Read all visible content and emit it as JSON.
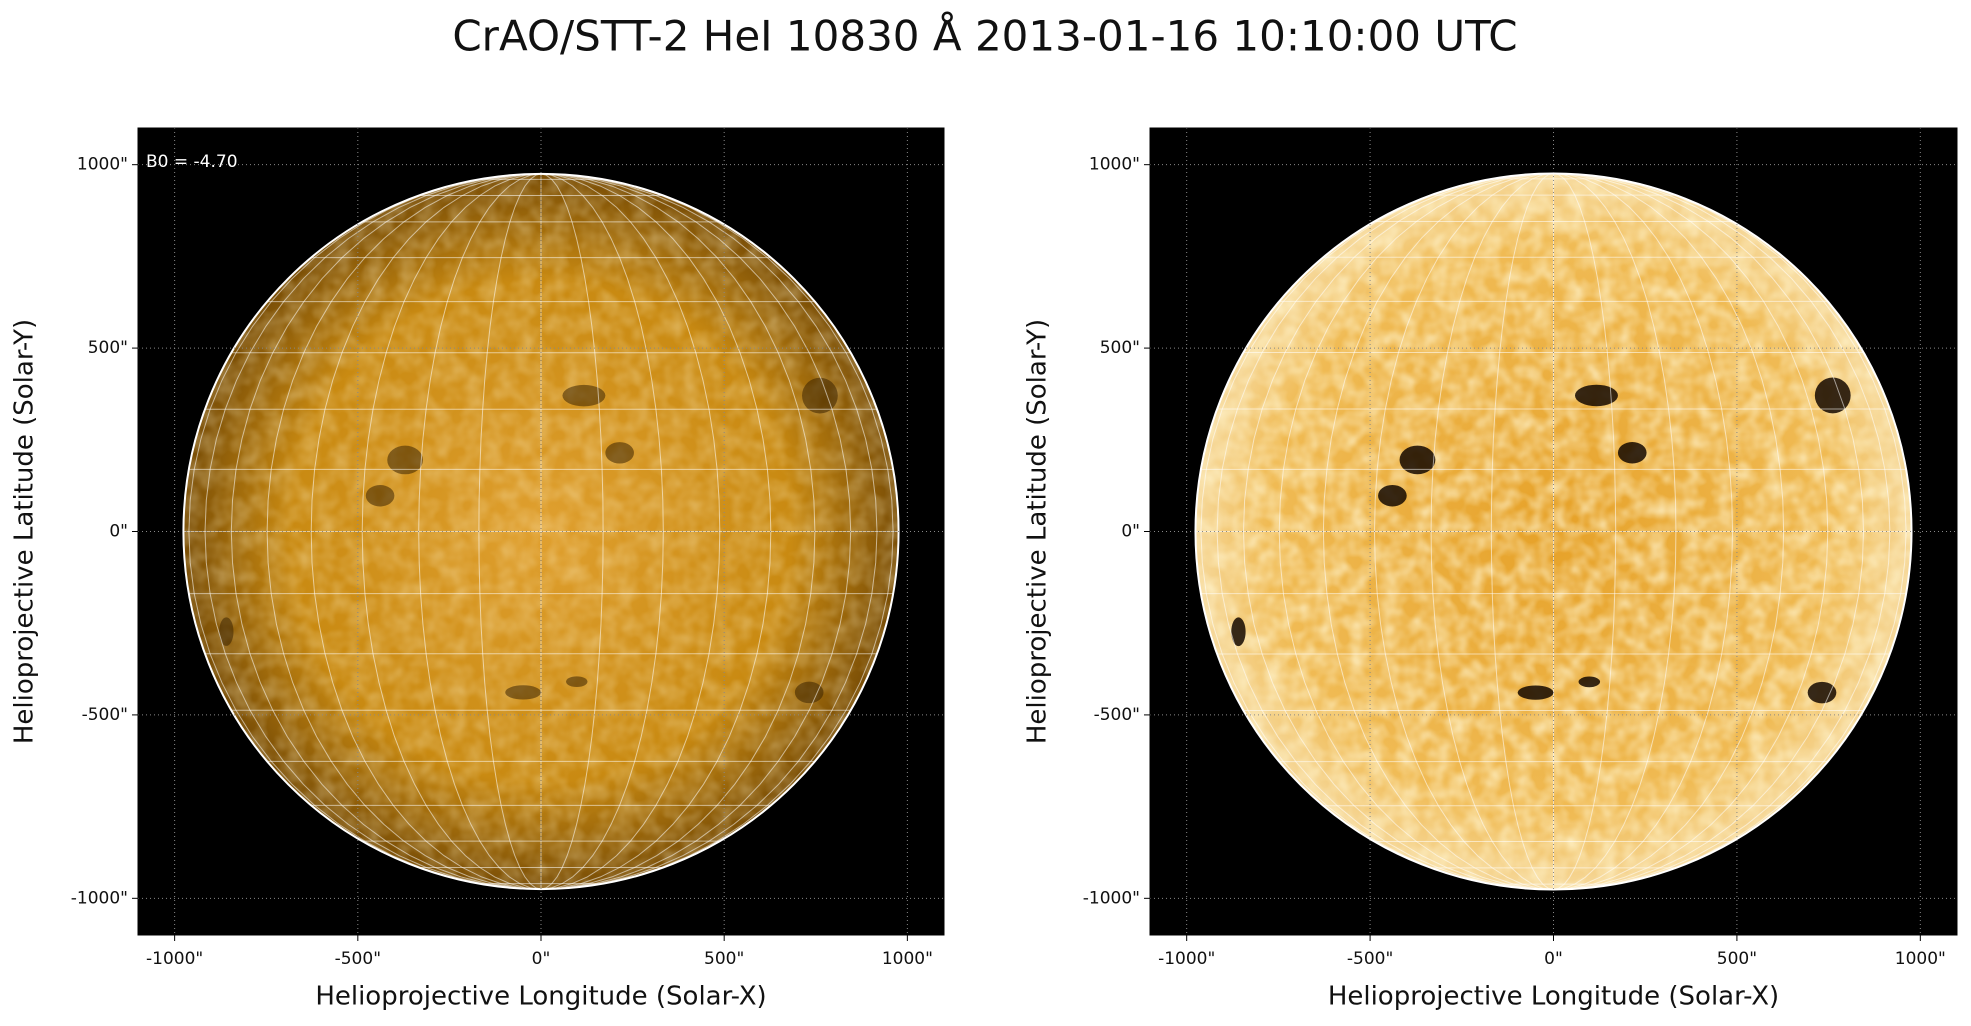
{
  "title": "CrAO/STT-2 HeI 10830 Å 2013-01-16 10:10:00 UTC",
  "chart_data": [
    {
      "type": "image",
      "xlabel": "Helioprojective Longitude (Solar-X)",
      "ylabel": "Helioprojective Latitude (Solar-Y)",
      "xlim": [
        -1100,
        1100
      ],
      "ylim": [
        -1100,
        1100
      ],
      "xticks": [
        {
          "value": -1000,
          "label": "-1000\""
        },
        {
          "value": -500,
          "label": "-500\""
        },
        {
          "value": 0,
          "label": "0\""
        },
        {
          "value": 500,
          "label": "500\""
        },
        {
          "value": 1000,
          "label": "1000\""
        }
      ],
      "yticks": [
        {
          "value": -1000,
          "label": "-1000\""
        },
        {
          "value": -500,
          "label": "-500\""
        },
        {
          "value": 0,
          "label": "0\""
        },
        {
          "value": 500,
          "label": "500\""
        },
        {
          "value": 1000,
          "label": "1000\""
        }
      ],
      "annotation": "B0 = -4.70",
      "disk_radius": 976,
      "grid": true
    },
    {
      "type": "image",
      "xlabel": "Helioprojective Longitude (Solar-X)",
      "ylabel": "Helioprojective Latitude (Solar-Y)",
      "xlim": [
        -1100,
        1100
      ],
      "ylim": [
        -1100,
        1100
      ],
      "xticks": [
        {
          "value": -1000,
          "label": "-1000\""
        },
        {
          "value": -500,
          "label": "-500\""
        },
        {
          "value": 0,
          "label": "0\""
        },
        {
          "value": 500,
          "label": "500\""
        },
        {
          "value": 1000,
          "label": "1000\""
        }
      ],
      "yticks": [
        {
          "value": -1000,
          "label": "-1000\""
        },
        {
          "value": -500,
          "label": "-500\""
        },
        {
          "value": 0,
          "label": "0\""
        },
        {
          "value": 500,
          "label": "500\""
        },
        {
          "value": 1000,
          "label": "1000\""
        }
      ],
      "disk_radius": 976,
      "grid": true
    }
  ]
}
